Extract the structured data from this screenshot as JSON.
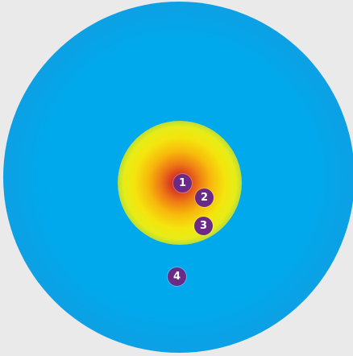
{
  "diagram": {
    "colors": {
      "background": "#eaeaea",
      "outer_blue": "#00a9ec",
      "edge_blue": "#2a7fcf",
      "core_red": "#b8142a",
      "mid_orange": "#ef7a14",
      "ring_yellow": "#f4e50d",
      "marker_purple": "#6a2a86"
    },
    "markers": [
      {
        "label": "1"
      },
      {
        "label": "2"
      },
      {
        "label": "3"
      },
      {
        "label": "4"
      }
    ]
  }
}
